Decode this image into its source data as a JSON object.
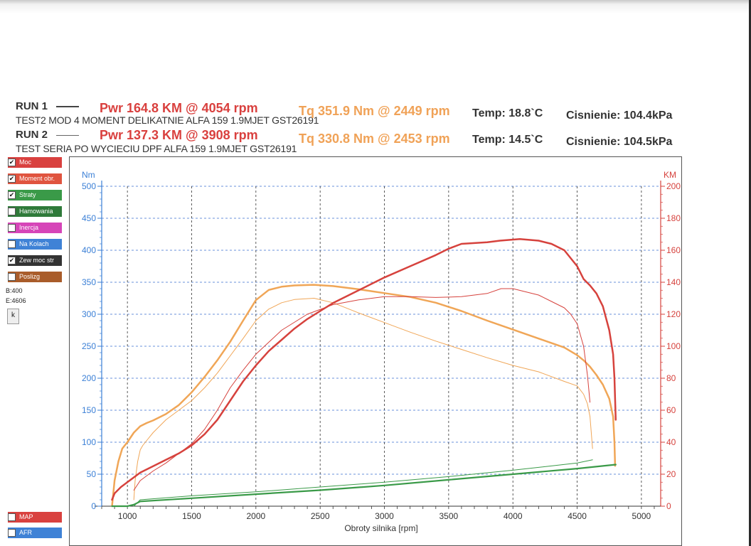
{
  "header": {
    "run1": {
      "label": "RUN 1",
      "desc": "TEST2 MOD 4 MOMENT DELIKATNIE ALFA 159 1.9MJET GST26191",
      "pwr": "Pwr  164.8 KM @ 4054 rpm",
      "tq": "Tq 351.9 Nm @ 2449 rpm",
      "temp": "Temp: 18.8`C",
      "press": "Cisnienie: 104.4kPa"
    },
    "run2": {
      "label": "RUN 2",
      "desc": "TEST SERIA PO WYCIECIU DPF ALFA 159 1.9MJET GST26191",
      "pwr": "Pwr  137.3 KM @ 3908 rpm",
      "tq": "Tq 330.8 Nm @ 2453 rpm",
      "temp": "Temp: 14.5`C",
      "press": "Cisnienie: 104.5kPa"
    }
  },
  "legend": [
    {
      "label": "Moc",
      "color": "#d9413f",
      "checked": true
    },
    {
      "label": "Moment obr.",
      "color": "#e0543f",
      "checked": true
    },
    {
      "label": "Straty",
      "color": "#3a9a48",
      "checked": true
    },
    {
      "label": "Hamowania",
      "color": "#2f7a3a",
      "checked": false
    },
    {
      "label": "Inercja",
      "color": "#d645b8",
      "checked": false
    },
    {
      "label": "Na Kolach",
      "color": "#3f82d6",
      "checked": false
    },
    {
      "label": "Zew moc str",
      "color": "#333333",
      "checked": true
    },
    {
      "label": "Poslizg",
      "color": "#a95c2a",
      "checked": false
    }
  ],
  "side": {
    "b": "B:400",
    "e": "E:4606",
    "k": "k"
  },
  "legend_bottom": [
    {
      "label": "MAP",
      "color": "#d9413f",
      "checked": false
    },
    {
      "label": "AFR",
      "color": "#3f82d6",
      "checked": false
    }
  ],
  "colors": {
    "power": "#d6423d",
    "torque": "#f0a657",
    "loss": "#3a9a48",
    "grid": "#3a6fd0",
    "left_axis": "#3a7fd6",
    "right_axis": "#d6423d"
  },
  "chart_data": {
    "type": "line",
    "xlabel": "Obroty silnika [rpm]",
    "xlim": [
      800,
      5150
    ],
    "x_ticks": [
      1000,
      1500,
      2000,
      2500,
      3000,
      3500,
      4000,
      4500,
      5000
    ],
    "y_left_label": "Nm",
    "y_left_lim": [
      0,
      500
    ],
    "y_left_ticks": [
      0,
      50,
      100,
      150,
      200,
      250,
      300,
      350,
      400,
      450,
      500
    ],
    "y_right_label": "KM",
    "y_right_lim": [
      0,
      200
    ],
    "y_right_ticks": [
      0,
      20,
      40,
      60,
      80,
      100,
      120,
      140,
      160,
      180,
      200
    ],
    "grid": true,
    "series": [
      {
        "run": "RUN 1",
        "kind": "torque",
        "axis": "left",
        "width": 2.5,
        "x": [
          880,
          900,
          930,
          960,
          1000,
          1050,
          1100,
          1150,
          1200,
          1300,
          1400,
          1500,
          1600,
          1700,
          1800,
          1900,
          2000,
          2100,
          2200,
          2300,
          2449,
          2600,
          2800,
          3000,
          3200,
          3400,
          3600,
          3800,
          4000,
          4200,
          4400,
          4500,
          4550,
          4600,
          4650,
          4700,
          4750,
          4780,
          4790,
          4795
        ],
        "y": [
          0,
          40,
          70,
          90,
          100,
          115,
          125,
          130,
          134,
          144,
          158,
          178,
          202,
          228,
          257,
          290,
          322,
          338,
          343,
          345,
          346,
          344,
          339,
          333,
          327,
          318,
          305,
          290,
          276,
          262,
          248,
          236,
          228,
          218,
          205,
          190,
          168,
          140,
          100,
          63
        ]
      },
      {
        "run": "RUN 2",
        "kind": "torque",
        "axis": "left",
        "width": 1,
        "x": [
          1050,
          1060,
          1080,
          1100,
          1120,
          1160,
          1200,
          1300,
          1400,
          1500,
          1600,
          1700,
          1800,
          1900,
          2000,
          2100,
          2200,
          2300,
          2453,
          2600,
          2800,
          3000,
          3200,
          3400,
          3600,
          3800,
          4000,
          4200,
          4400,
          4500,
          4550,
          4580,
          4600,
          4620
        ],
        "y": [
          10,
          40,
          70,
          88,
          95,
          105,
          115,
          135,
          150,
          165,
          185,
          208,
          235,
          262,
          290,
          308,
          318,
          323,
          325,
          318,
          302,
          287,
          272,
          258,
          245,
          232,
          220,
          210,
          195,
          188,
          175,
          160,
          140,
          90
        ]
      },
      {
        "run": "RUN 1",
        "kind": "power",
        "axis": "right",
        "width": 2.5,
        "x": [
          880,
          900,
          950,
          1000,
          1050,
          1100,
          1200,
          1300,
          1400,
          1500,
          1600,
          1700,
          1800,
          1900,
          2000,
          2100,
          2200,
          2300,
          2400,
          2500,
          2600,
          2800,
          3000,
          3200,
          3400,
          3500,
          3600,
          3700,
          3800,
          3900,
          4054,
          4200,
          4300,
          4400,
          4500,
          4550,
          4600,
          4650,
          4700,
          4750,
          4780,
          4790,
          4800
        ],
        "y": [
          4,
          8,
          12,
          15,
          18,
          21,
          25,
          29,
          33,
          38,
          45,
          54,
          66,
          78,
          88,
          97,
          104,
          111,
          117,
          122,
          127,
          135,
          143,
          150,
          157,
          161,
          164,
          164.5,
          165,
          166,
          167,
          166,
          164,
          160,
          150,
          142,
          138,
          133,
          125,
          110,
          95,
          80,
          54
        ]
      },
      {
        "run": "RUN 2",
        "kind": "power",
        "axis": "right",
        "width": 1,
        "x": [
          1050,
          1100,
          1200,
          1300,
          1400,
          1500,
          1600,
          1700,
          1800,
          1900,
          2000,
          2200,
          2400,
          2600,
          2800,
          3000,
          3200,
          3400,
          3600,
          3800,
          3908,
          4000,
          4200,
          4300,
          4400,
          4450,
          4500,
          4550,
          4580,
          4600
        ],
        "y": [
          10,
          16,
          22,
          27,
          33,
          39,
          48,
          60,
          74,
          85,
          95,
          110,
          120,
          126,
          129,
          131,
          131,
          130.5,
          131,
          133,
          136,
          136,
          132,
          128,
          124,
          120,
          114,
          100,
          82,
          65
        ]
      },
      {
        "run": "RUN 1",
        "kind": "loss",
        "axis": "right",
        "width": 2.2,
        "x": [
          880,
          1000,
          1050,
          1100,
          1500,
          2000,
          2500,
          3000,
          3500,
          4000,
          4500,
          4800
        ],
        "y": [
          0,
          0,
          1,
          3,
          5,
          7.5,
          10,
          13,
          16.5,
          20,
          23.5,
          26
        ]
      },
      {
        "run": "RUN 2",
        "kind": "loss",
        "axis": "right",
        "width": 1,
        "x": [
          1050,
          1100,
          1500,
          2000,
          2500,
          3000,
          3500,
          4000,
          4500,
          4620
        ],
        "y": [
          0,
          4,
          6.5,
          9,
          12,
          15,
          18.5,
          22.5,
          27,
          29
        ]
      }
    ]
  }
}
